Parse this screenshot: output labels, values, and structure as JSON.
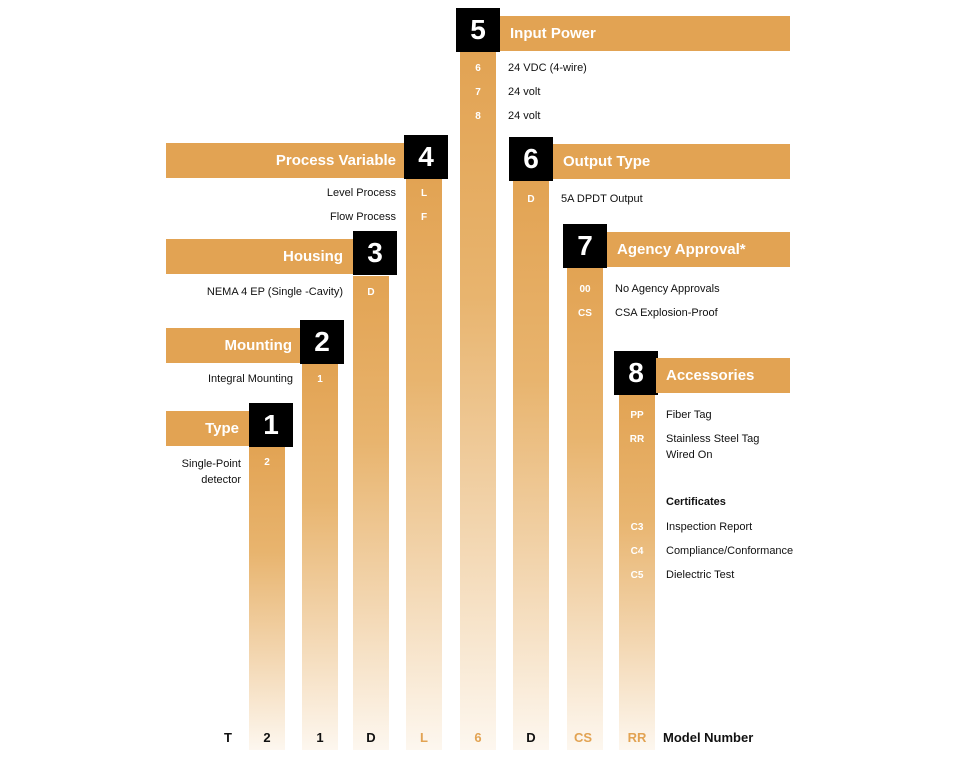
{
  "sections": [
    {
      "number": "1",
      "title": "Type"
    },
    {
      "number": "2",
      "title": "Mounting"
    },
    {
      "number": "3",
      "title": "Housing"
    },
    {
      "number": "4",
      "title": "Process Variable"
    },
    {
      "number": "5",
      "title": "Input Power"
    },
    {
      "number": "6",
      "title": "Output Type"
    },
    {
      "number": "7",
      "title": "Agency Approval*"
    },
    {
      "number": "8",
      "title": "Accessories"
    }
  ],
  "type_options": [
    {
      "code": "2",
      "label_line1": "Single-Point",
      "label_line2": "detector"
    }
  ],
  "mounting_options": [
    {
      "code": "1",
      "label": "Integral Mounting"
    }
  ],
  "housing_options": [
    {
      "code": "D",
      "label": "NEMA 4 EP (Single -Cavity)"
    }
  ],
  "process_options": [
    {
      "code": "L",
      "label": "Level Process"
    },
    {
      "code": "F",
      "label": "Flow Process"
    }
  ],
  "power_options": [
    {
      "code": "6",
      "label": "24 VDC (4-wire)"
    },
    {
      "code": "7",
      "label": "24 volt"
    },
    {
      "code": "8",
      "label": "24 volt"
    }
  ],
  "output_options": [
    {
      "code": "D",
      "label": "5A DPDT Output"
    }
  ],
  "agency_options": [
    {
      "code": "00",
      "label": "No Agency Approvals"
    },
    {
      "code": "CS",
      "label": "CSA Explosion-Proof"
    }
  ],
  "accessory_options": [
    {
      "code": "PP",
      "label": "Fiber Tag"
    },
    {
      "code": "RR",
      "label_line1": "Stainless Steel Tag",
      "label_line2": "Wired On"
    }
  ],
  "certificates_heading": "Certificates",
  "certificate_options": [
    {
      "code": "C3",
      "label": "Inspection Report"
    },
    {
      "code": "C4",
      "label": "Compliance/Conformance"
    },
    {
      "code": "C5",
      "label": "Dielectric Test"
    }
  ],
  "model_number": {
    "characters": [
      "T",
      "2",
      "1",
      "D",
      "L",
      "6",
      "D",
      "CS",
      "RR"
    ],
    "label": "Model Number"
  },
  "colors": {
    "accent": "#e2a353",
    "badge": "#000000",
    "text": "#111111"
  }
}
